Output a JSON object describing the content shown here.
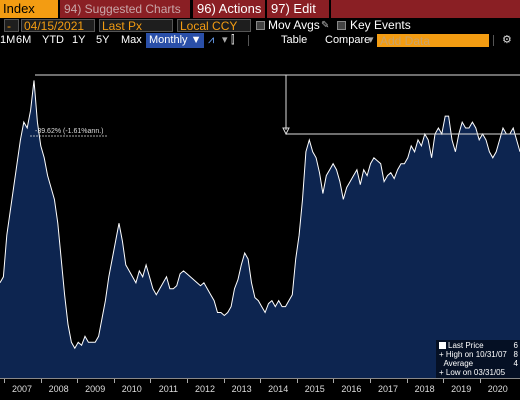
{
  "toolbar": {
    "index_label": "Index",
    "suggested_label": "94) Suggested Charts",
    "actions_label": "96) Actions",
    "edit_label": "97) Edit"
  },
  "controls": {
    "date_range": "04/15/2021",
    "field": "Last Px",
    "currency": "Local CCY",
    "mov_avgs": "Mov Avgs",
    "key_events": "Key Events"
  },
  "ranges": {
    "items": [
      "1M",
      "6M",
      "YTD",
      "1Y",
      "5Y",
      "Max"
    ],
    "frequency": "Monthly",
    "table": "Table",
    "compare": "Compare",
    "add_data_placeholder": "Add Data"
  },
  "annotation": {
    "change_text": "-39.62% (-1.61%ann.)"
  },
  "legend": {
    "last_price": "Last Price",
    "last_price_val": "6",
    "high": "High on 10/31/07",
    "high_val": "8",
    "average": "Average",
    "average_val": "4",
    "low": "Low on 03/31/05",
    "low_val": ""
  },
  "chart_data": {
    "type": "area",
    "x_labels": [
      "2007",
      "2008",
      "2009",
      "2010",
      "2011",
      "2012",
      "2013",
      "2014",
      "2015",
      "2016",
      "2017",
      "2018",
      "2019",
      "2020"
    ],
    "title": "",
    "colors": {
      "fill": "#0d2550",
      "line": "#ffffff"
    },
    "series": [
      {
        "values": [
          32,
          34,
          48,
          56,
          64,
          72,
          80,
          86,
          84,
          90,
          100,
          86,
          78,
          74,
          68,
          64,
          60,
          52,
          40,
          28,
          18,
          12,
          10,
          12,
          11,
          14,
          12,
          12,
          12,
          14,
          20,
          26,
          34,
          40,
          46,
          52,
          46,
          38,
          36,
          34,
          32,
          36,
          34,
          38,
          34,
          30,
          28,
          30,
          32,
          34,
          30,
          30,
          31,
          35,
          36,
          35,
          34,
          33,
          32,
          31,
          32,
          30,
          28,
          26,
          22,
          22,
          21,
          22,
          24,
          30,
          33,
          38,
          42,
          40,
          32,
          27,
          26,
          24,
          22,
          25,
          26,
          24,
          26,
          24,
          24,
          26,
          28,
          40,
          48,
          60,
          76,
          80,
          76,
          74,
          69,
          62,
          68,
          70,
          72,
          70,
          66,
          60,
          64,
          66,
          68,
          70,
          65,
          70,
          68,
          72,
          74,
          73,
          72,
          66,
          68,
          69,
          67,
          70,
          72,
          72,
          74,
          78,
          76,
          80,
          78,
          82,
          80,
          74,
          82,
          84,
          82,
          88,
          88,
          80,
          76,
          82,
          86,
          84,
          84,
          86,
          84,
          80,
          82,
          80,
          76,
          74,
          76,
          80,
          84,
          82,
          82,
          84,
          80,
          76
        ]
      }
    ]
  }
}
